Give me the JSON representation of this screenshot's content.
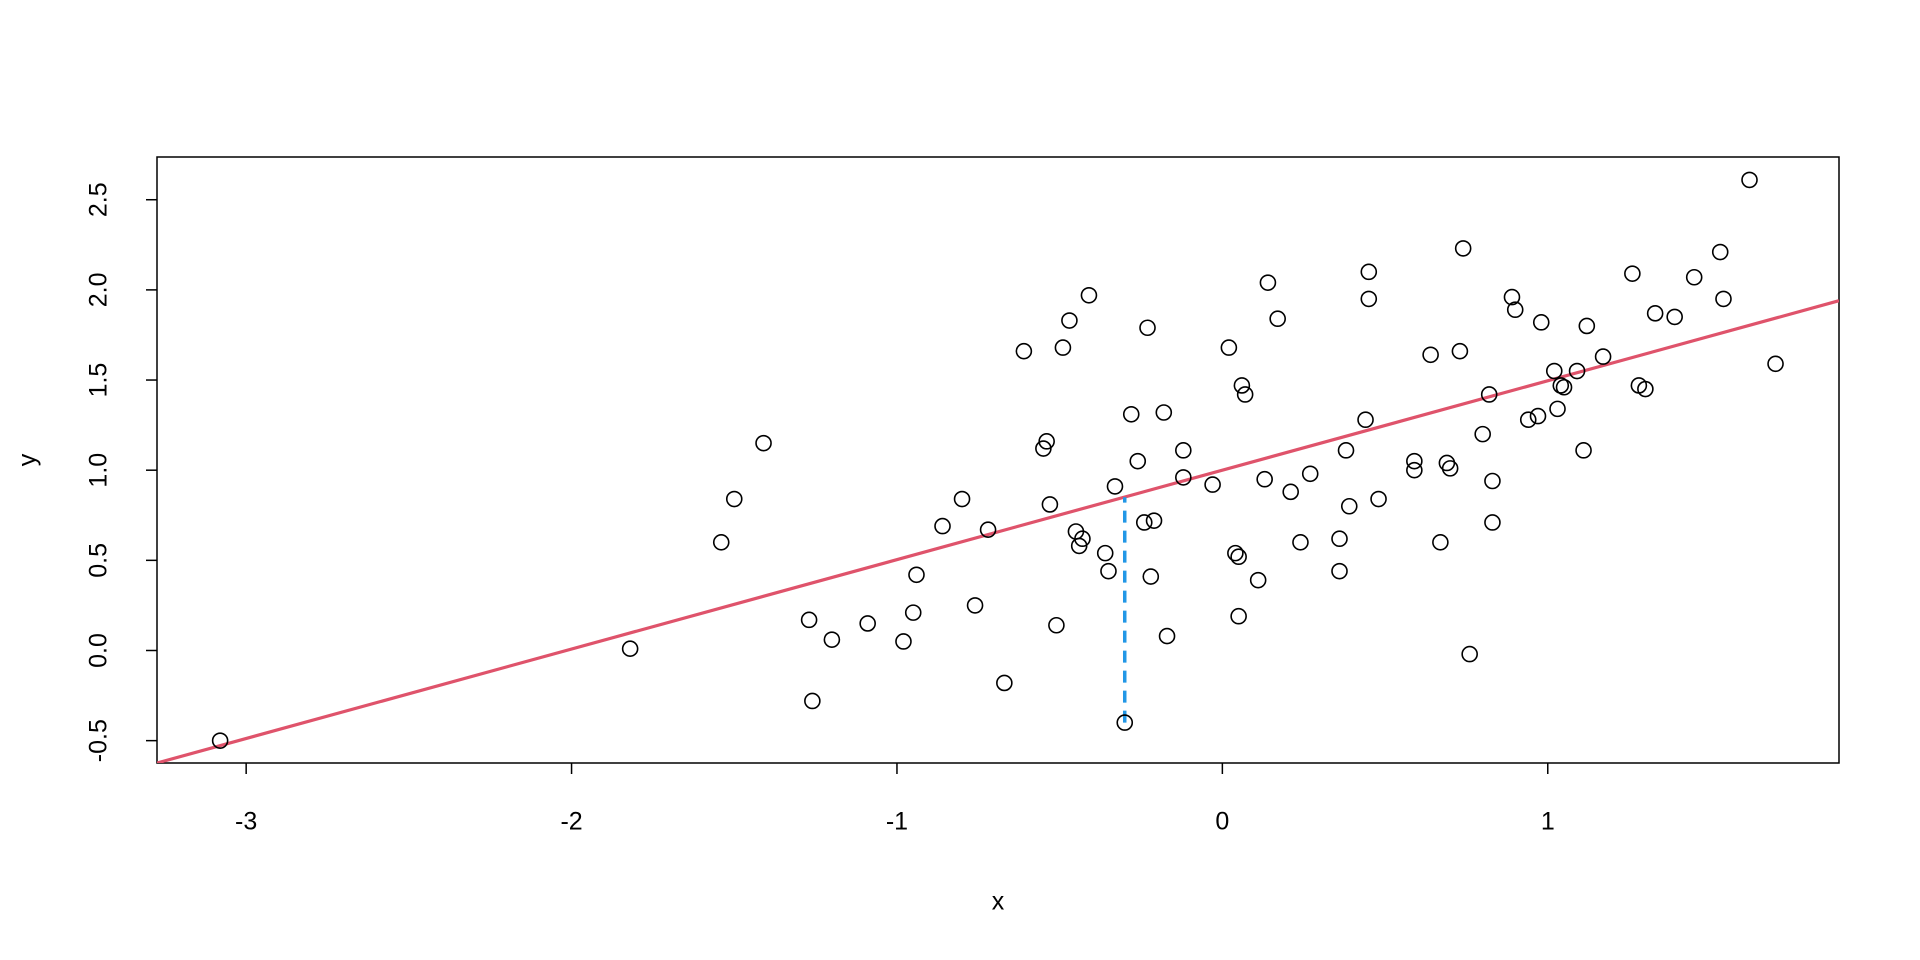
{
  "chart_data": {
    "type": "scatter",
    "x_label": "x",
    "y_label": "y",
    "xlim": [
      -3.274,
      1.895
    ],
    "ylim": [
      -0.624,
      2.737
    ],
    "xticks": [
      -3,
      -2,
      -1,
      0,
      1
    ],
    "yticks": [
      -0.5,
      {
        "value": 0,
        "label": "0.0"
      },
      0.5,
      {
        "value": 1,
        "label": "1.0"
      },
      1.5,
      {
        "value": 2,
        "label": "2.0"
      },
      2.5
    ],
    "color": "#000000",
    "x": [
      -3.08,
      -1.82,
      -1.54,
      -1.5,
      -1.41,
      -1.27,
      -1.26,
      -1.2,
      -1.09,
      -0.98,
      -0.95,
      -0.94,
      -0.86,
      -0.8,
      -0.76,
      -0.72,
      -0.67,
      -0.61,
      -0.55,
      -0.54,
      -0.53,
      -0.51,
      -0.49,
      -0.47,
      -0.45,
      -0.44,
      -0.43,
      -0.41,
      -0.36,
      -0.35,
      -0.33,
      -0.3,
      -0.28,
      -0.26,
      -0.24,
      -0.23,
      -0.22,
      -0.21,
      -0.18,
      -0.17,
      -0.12,
      -0.12,
      -0.03,
      0.02,
      0.04,
      0.05,
      0.05,
      0.06,
      0.07,
      0.11,
      0.13,
      0.14,
      0.17,
      0.21,
      0.24,
      0.27,
      0.36,
      0.36,
      0.38,
      0.39,
      0.44,
      0.45,
      0.45,
      0.48,
      0.59,
      0.59,
      0.64,
      0.67,
      0.69,
      0.7,
      0.73,
      0.74,
      0.76,
      0.8,
      0.82,
      0.83,
      0.83,
      0.89,
      0.9,
      0.94,
      0.97,
      0.98,
      1.02,
      1.03,
      1.04,
      1.05,
      1.09,
      1.11,
      1.12,
      1.17,
      1.26,
      1.28,
      1.3,
      1.33,
      1.39,
      1.45,
      1.53,
      1.54,
      1.62,
      1.7
    ],
    "y": [
      -0.5,
      0.01,
      0.6,
      0.84,
      1.15,
      0.17,
      -0.28,
      0.06,
      0.15,
      0.05,
      0.21,
      0.42,
      0.69,
      0.84,
      0.25,
      0.67,
      -0.18,
      1.66,
      1.12,
      1.16,
      0.81,
      0.14,
      1.68,
      1.83,
      0.66,
      0.58,
      0.62,
      1.97,
      0.54,
      0.44,
      0.91,
      -0.4,
      1.31,
      1.05,
      0.71,
      1.79,
      0.41,
      0.72,
      1.32,
      0.08,
      1.11,
      0.96,
      0.92,
      1.68,
      0.54,
      0.52,
      0.19,
      1.47,
      1.42,
      0.39,
      0.95,
      2.04,
      1.84,
      0.88,
      0.6,
      0.98,
      0.62,
      0.44,
      1.11,
      0.8,
      1.28,
      2.1,
      1.95,
      0.84,
      1.0,
      1.05,
      1.64,
      0.6,
      1.04,
      1.01,
      1.66,
      2.23,
      -0.02,
      1.2,
      1.42,
      0.71,
      0.94,
      1.96,
      1.89,
      1.28,
      1.3,
      1.82,
      1.55,
      1.34,
      1.47,
      1.46,
      1.55,
      1.11,
      1.8,
      1.63,
      2.09,
      1.47,
      1.45,
      1.87,
      1.85,
      2.07,
      2.21,
      1.95,
      2.61,
      1.59
    ],
    "fit": {
      "intercept": 1.0,
      "slope": 0.496,
      "color": "#DF536B"
    },
    "residual": {
      "x": -0.3,
      "y_point": -0.4,
      "y_fit": 0.85,
      "color": "#2297E6"
    }
  }
}
